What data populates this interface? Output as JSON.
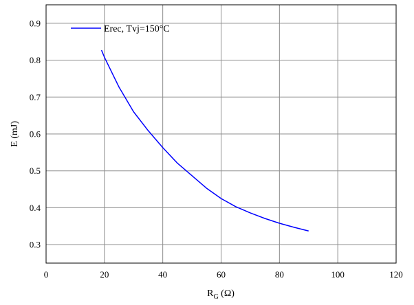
{
  "chart_data": {
    "type": "line",
    "title": "",
    "xlabel": "R",
    "xlabel_sub": "G",
    "xlabel_unit": " (Ω)",
    "ylabel": "E (mJ)",
    "xlim": [
      0,
      120
    ],
    "ylim": [
      0.25,
      0.95
    ],
    "xticks": [
      0,
      20,
      40,
      60,
      80,
      100,
      120
    ],
    "yticks": [
      0.3,
      0.4,
      0.5,
      0.6,
      0.7,
      0.8,
      0.9
    ],
    "grid": true,
    "legend_position": "top-left",
    "series": [
      {
        "name": "Erec, Tvj=150°C",
        "color": "#0000ff",
        "x": [
          19,
          20,
          25,
          30,
          35,
          40,
          45,
          50,
          55,
          60,
          65,
          70,
          75,
          80,
          85,
          90
        ],
        "y": [
          0.827,
          0.808,
          0.727,
          0.66,
          0.609,
          0.563,
          0.521,
          0.487,
          0.453,
          0.425,
          0.403,
          0.386,
          0.371,
          0.358,
          0.347,
          0.337
        ]
      }
    ]
  }
}
